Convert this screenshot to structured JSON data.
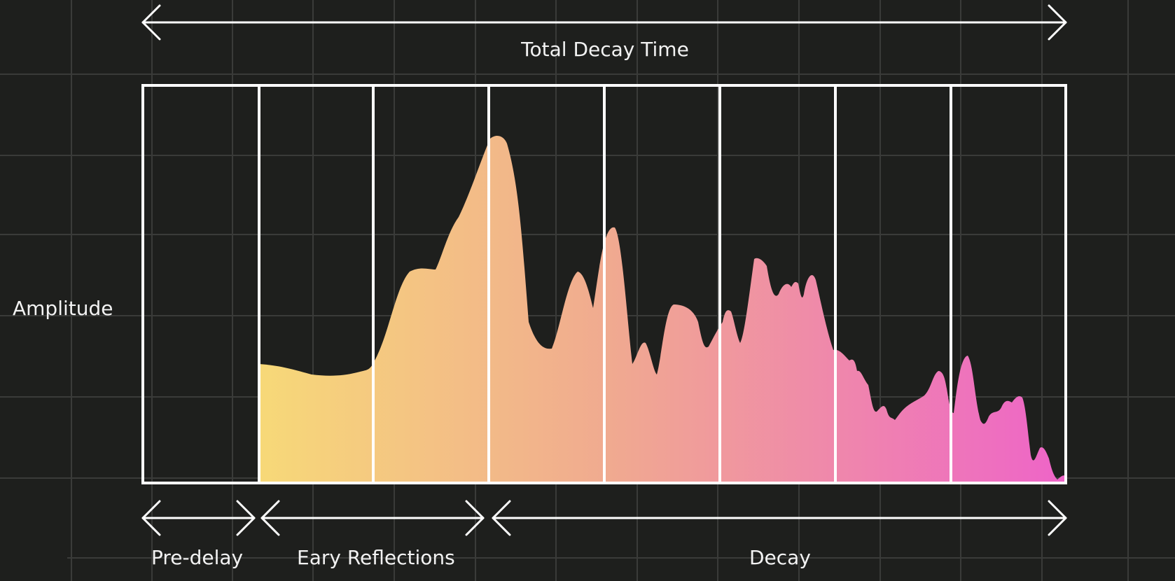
{
  "labels": {
    "total_decay_time": "Total Decay Time",
    "amplitude": "Amplitude",
    "pre_delay": "Pre-delay",
    "early_reflections": "Eary Reflections",
    "decay": "Decay"
  },
  "colors": {
    "background": "#1e1f1d",
    "grid": "#3a3b39",
    "lines": "#ffffff",
    "gradient_start": "#f7d978",
    "gradient_mid": "#f0a891",
    "gradient_end": "#ee64c8"
  },
  "diagram": {
    "segments": [
      "Pre-delay",
      "Eary Reflections",
      "Decay"
    ],
    "time_divisions": 8
  }
}
